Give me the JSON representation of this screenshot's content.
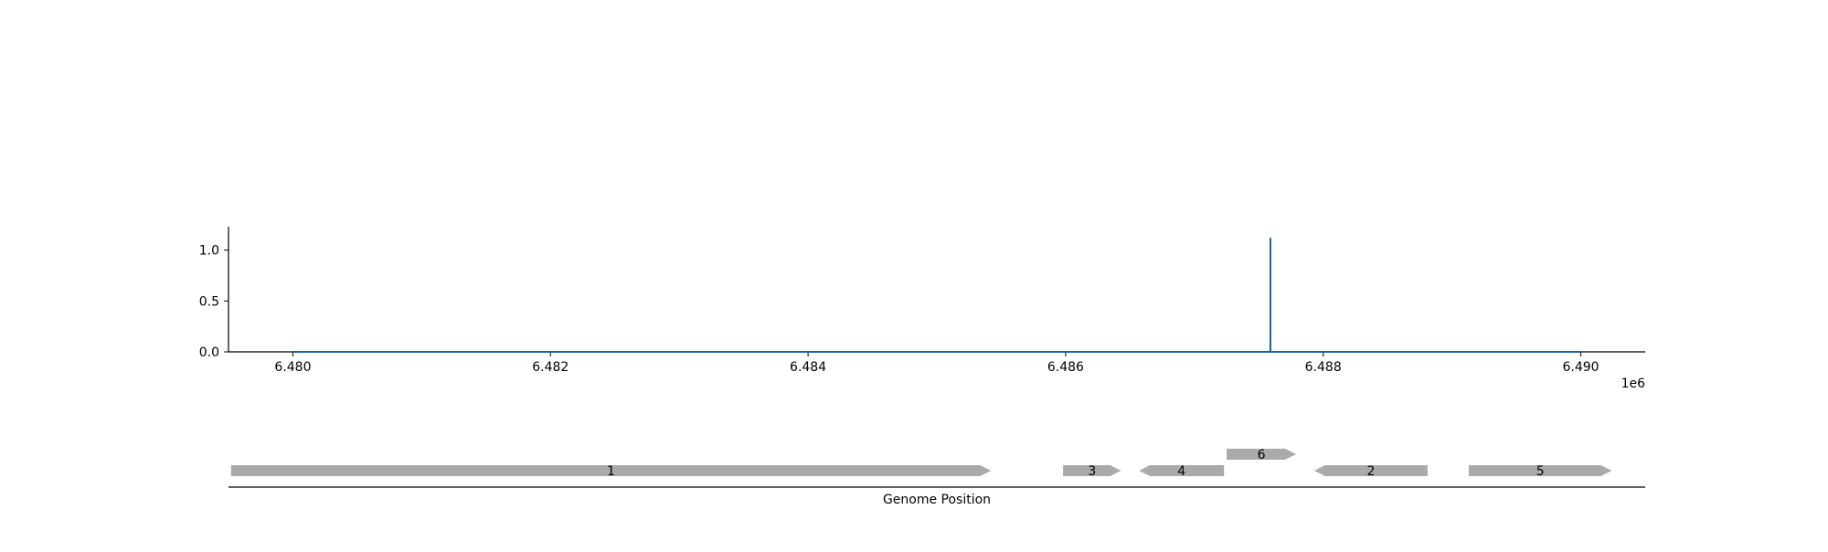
{
  "chart_data": [
    {
      "type": "line",
      "x_offset_label": "1e6",
      "x_ticks": [
        6.48,
        6.482,
        6.484,
        6.486,
        6.488,
        6.49
      ],
      "x_tick_labels": [
        "6.480",
        "6.482",
        "6.484",
        "6.486",
        "6.488",
        "6.490"
      ],
      "y_ticks": [
        0.0,
        0.5,
        1.0
      ],
      "y_tick_labels": [
        "0.0",
        "0.5",
        "1.0"
      ],
      "xlim": [
        6479500,
        6490500
      ],
      "ylim": [
        0,
        1.23
      ],
      "color": "#1f5f9f",
      "series": [
        {
          "x": [
            6480000,
            6487590,
            6487590,
            6487590,
            6490000
          ],
          "y": [
            0,
            0,
            1.12,
            0,
            0
          ]
        }
      ]
    },
    {
      "type": "gene-track",
      "xlabel": "Genome Position",
      "color": "#aaaaaa",
      "genes": [
        {
          "label": "1",
          "start": 6479520,
          "end": 6485420,
          "strand": "+",
          "row": 0
        },
        {
          "label": "3",
          "start": 6485980,
          "end": 6486430,
          "strand": "+",
          "row": 0
        },
        {
          "label": "4",
          "start": 6486570,
          "end": 6487230,
          "strand": "-",
          "row": 0
        },
        {
          "label": "6",
          "start": 6487250,
          "end": 6487790,
          "strand": "+",
          "row": 1
        },
        {
          "label": "2",
          "start": 6487930,
          "end": 6488810,
          "strand": "-",
          "row": 0
        },
        {
          "label": "5",
          "start": 6489130,
          "end": 6490240,
          "strand": "+",
          "row": 0
        }
      ]
    }
  ]
}
